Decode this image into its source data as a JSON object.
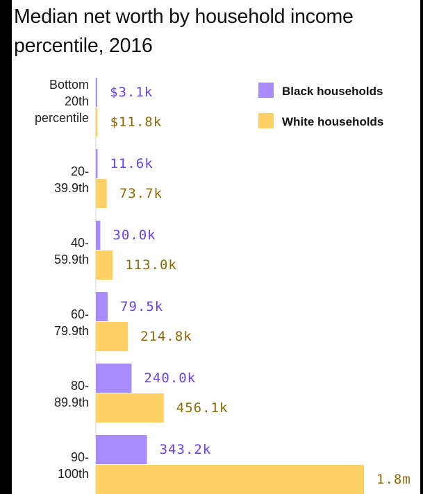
{
  "title": "Median net worth by household income percentile, 2016",
  "colors": {
    "black_bar": "#a78bfa",
    "white_bar": "#fdd166",
    "black_text": "#6a3ff2",
    "white_text": "#8e6805",
    "axis": "#d9cfc0"
  },
  "chart_data": {
    "type": "bar",
    "orientation": "horizontal",
    "title": "Median net worth by household income percentile, 2016",
    "categories": [
      [
        "Bottom",
        "20th",
        "percentile"
      ],
      [
        "20-",
        "39.9th"
      ],
      [
        "40-",
        "59.9th"
      ],
      [
        "60-",
        "79.9th"
      ],
      [
        "80-",
        "89.9th"
      ],
      [
        "90-",
        "100th"
      ]
    ],
    "series": [
      {
        "name": "Black households",
        "values": [
          3.1,
          11.6,
          30.0,
          79.5,
          240.0,
          343.2
        ],
        "labels": [
          "$3.1k",
          "11.6k",
          "30.0k",
          "79.5k",
          "240.0k",
          "343.2k"
        ]
      },
      {
        "name": "White households",
        "values": [
          11.8,
          73.7,
          113.0,
          214.8,
          456.1,
          1800.0
        ],
        "labels": [
          "$11.8k",
          "73.7k",
          "113.0k",
          "214.8k",
          "456.1k",
          "1.8m"
        ]
      }
    ],
    "value_unit": "thousands of dollars",
    "legend_position": "top-right"
  }
}
